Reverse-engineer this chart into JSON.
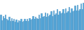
{
  "values": [
    28,
    18,
    25,
    22,
    28,
    20,
    18,
    24,
    16,
    22,
    16,
    20,
    15,
    19,
    14,
    18,
    16,
    20,
    15,
    17,
    20,
    16,
    21,
    17,
    22,
    19,
    20,
    25,
    20,
    24,
    22,
    20,
    28,
    22,
    30,
    24,
    26,
    32,
    24,
    30,
    26,
    28,
    34,
    26,
    36,
    28,
    30,
    38,
    28,
    35,
    30,
    32,
    38,
    30,
    40,
    32,
    34,
    42,
    32,
    40,
    34,
    36,
    44,
    36,
    46,
    36,
    38,
    48,
    38,
    50
  ],
  "bar_color": "#5baee0",
  "edge_color": "#3a8abf",
  "background_color": "#ffffff",
  "ylim_min": 0,
  "ylim_max": 55
}
